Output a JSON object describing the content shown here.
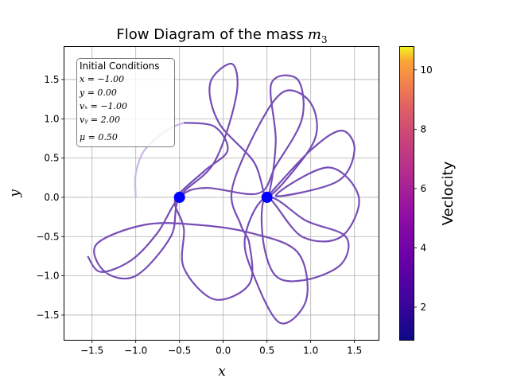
{
  "chart_data": {
    "type": "line",
    "title": "Flow Diagram of the mass",
    "title_math": "m",
    "title_sub": "3",
    "xlabel": "x",
    "ylabel": "y",
    "xlim": [
      -1.82,
      1.78
    ],
    "ylim": [
      -1.82,
      1.92
    ],
    "x_ticks": [
      -1.5,
      -1.0,
      -0.5,
      0.0,
      0.5,
      1.0,
      1.5
    ],
    "x_tick_labels": [
      "−1.5",
      "−1.0",
      "−0.5",
      "0.0",
      "0.5",
      "1.0",
      "1.5"
    ],
    "y_ticks": [
      -1.5,
      -1.0,
      -0.5,
      0.0,
      0.5,
      1.0,
      1.5
    ],
    "y_tick_labels": [
      "−1.5",
      "−1.0",
      "−0.5",
      "0.0",
      "0.5",
      "1.0",
      "1.5"
    ],
    "grid": true,
    "line_color": "#6a3fb0",
    "line_color_light": "#c9b6e4",
    "masses": [
      {
        "x": -0.5,
        "y": 0.0,
        "color": "#0000ff"
      },
      {
        "x": 0.5,
        "y": 0.0,
        "color": "#0000ff"
      }
    ],
    "initial_conditions": {
      "header": "Initial Conditions",
      "lines": [
        "x = −1.00",
        "y = 0.00",
        "vₓ = −1.00",
        "vᵧ = 2.00",
        "μ = 0.50"
      ]
    },
    "colorbar": {
      "label": "Veclocity",
      "range": [
        0.9,
        10.8
      ],
      "ticks": [
        2,
        4,
        6,
        8,
        10
      ],
      "tick_labels": [
        "2",
        "4",
        "6",
        "8",
        "10"
      ],
      "colormap": "plasma"
    }
  }
}
